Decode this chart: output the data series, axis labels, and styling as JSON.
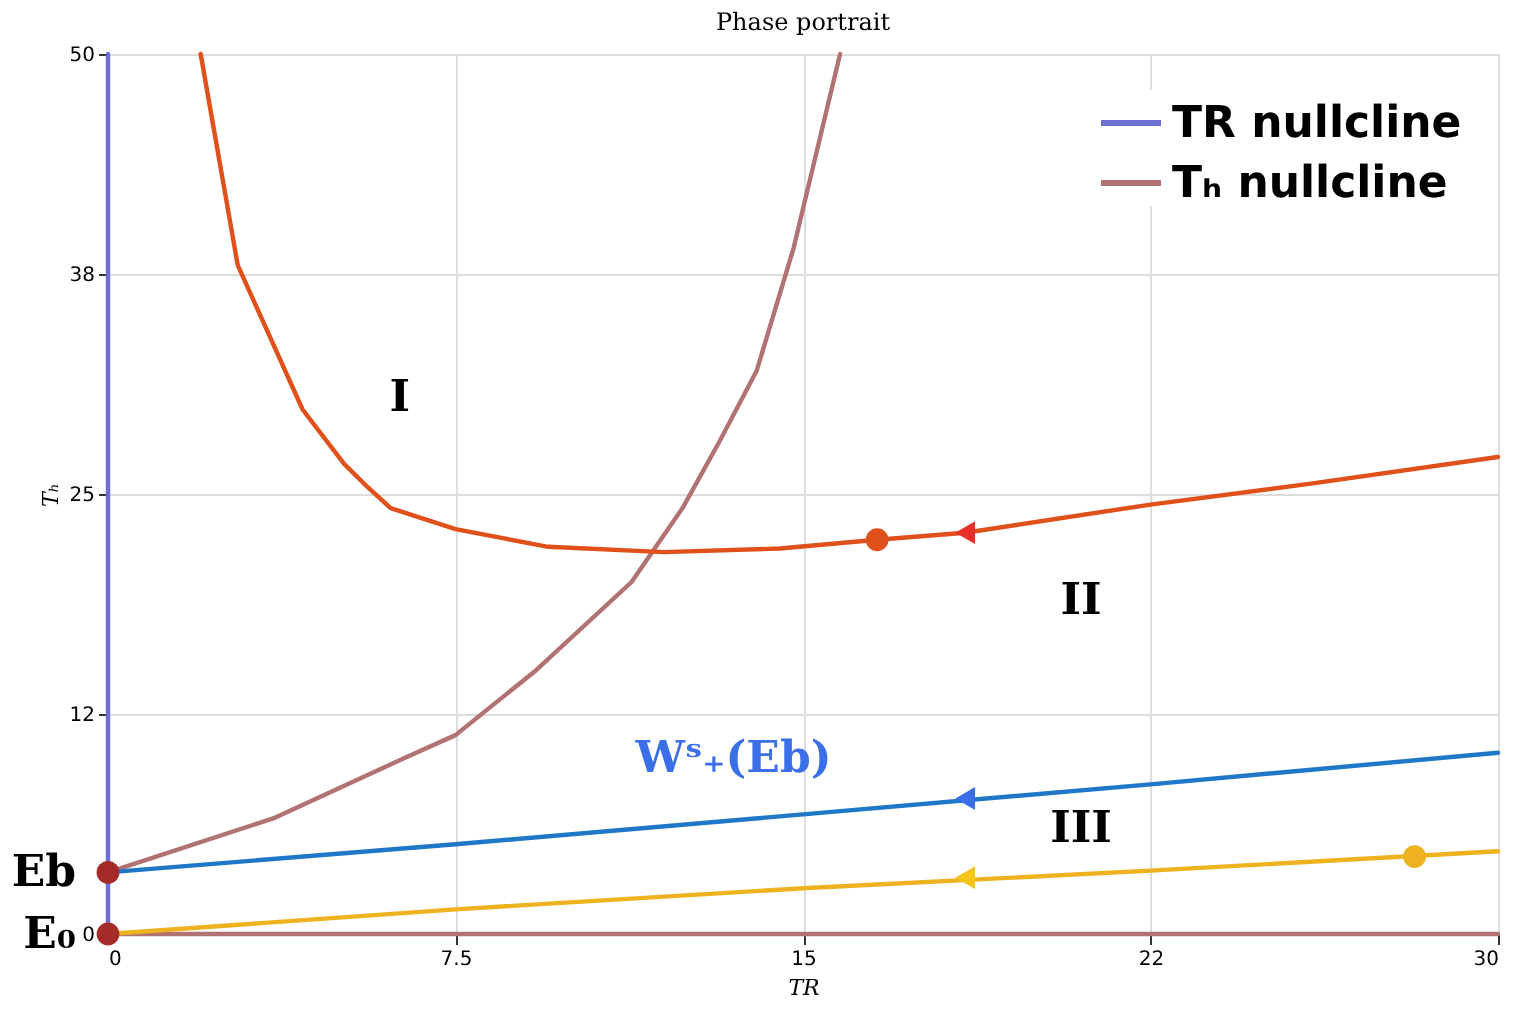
{
  "chart_data": {
    "type": "line",
    "title": "Phase portrait",
    "xlabel": "TR",
    "ylabel": "Tₕ",
    "xlim": [
      0,
      30
    ],
    "ylim": [
      0,
      50
    ],
    "xticks": [
      0,
      7.5,
      15,
      {
        "value": 22.5,
        "label": "22"
      },
      30
    ],
    "yticks": [
      0,
      {
        "value": 12.5,
        "label": "12"
      },
      25,
      {
        "value": 37.5,
        "label": "38"
      },
      50
    ],
    "grid": true,
    "legend": "top right",
    "marker": "none",
    "line_style": "solid",
    "series": [
      {
        "name": "TR nullcline",
        "color": "#6b6fd2",
        "x": [
          0,
          0
        ],
        "values": [
          0,
          50
        ]
      },
      {
        "name": "Tₕ nullcline",
        "color": "#b07272",
        "x": [
          0,
          3.6,
          6.4,
          7.5,
          9.2,
          11.3,
          12.4,
          13.2,
          14.0,
          14.8,
          15.8
        ],
        "values": [
          3.5,
          6.6,
          10.0,
          11.3,
          14.9,
          20.0,
          24.2,
          28.0,
          32.0,
          39.0,
          50.0
        ]
      },
      {
        "color": "#b07272",
        "x": [
          0,
          30
        ],
        "values": [
          0,
          0
        ]
      },
      {
        "color": "#e0501a",
        "x": [
          2.0,
          2.8,
          4.2,
          5.1,
          5.6,
          6.1,
          7.5,
          9.5,
          12.0,
          14.5,
          16.6,
          18.5,
          22.5,
          26.0,
          30.0
        ],
        "values": [
          50,
          38,
          29.8,
          26.7,
          25.4,
          24.2,
          23.0,
          22.0,
          21.7,
          21.9,
          22.4,
          22.8,
          24.4,
          25.6,
          27.1
        ]
      },
      {
        "color": "#1f77c8",
        "x": [
          0,
          7.5,
          15,
          22.5,
          30
        ],
        "values": [
          3.5,
          5.1,
          6.8,
          8.5,
          10.3
        ]
      },
      {
        "color": "#eeb220",
        "x": [
          0,
          7.5,
          15,
          22.5,
          30
        ],
        "values": [
          0,
          1.4,
          2.6,
          3.6,
          4.7
        ]
      },
      {
        "type": "scatter",
        "marker": "circle",
        "color": "#a52a2a",
        "x": [
          0,
          0
        ],
        "values": [
          3.5,
          0
        ]
      },
      {
        "type": "scatter",
        "marker": "circle",
        "colors": [
          "#e0501a",
          "#eeb220"
        ],
        "x": [
          16.6,
          28.2
        ],
        "values": [
          22.4,
          4.4
        ]
      },
      {
        "type": "scatter",
        "marker": "triangle",
        "colors": [
          "#e8302a",
          "#3b6fe8",
          "#f5c518"
        ],
        "x": [
          18.5,
          18.5,
          18.5
        ],
        "values": [
          22.8,
          7.7,
          3.2
        ]
      }
    ],
    "annotations": [
      "I",
      "II",
      "III",
      "Wˢ₊(Eb)",
      {
        "text": "Eb",
        "x": 0,
        "y": 3.5
      },
      {
        "text": "E₀",
        "x": 0,
        "y": 0
      }
    ]
  }
}
